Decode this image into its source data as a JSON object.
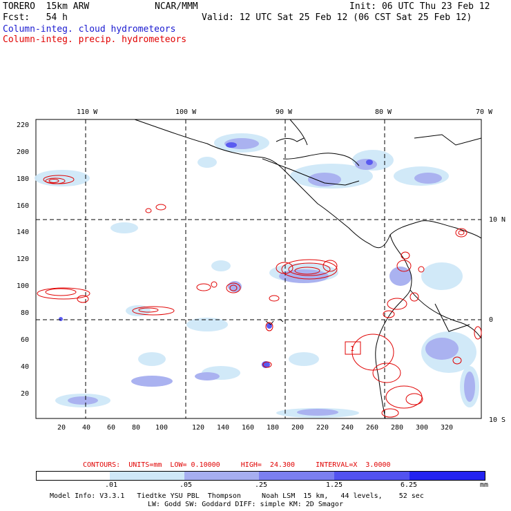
{
  "header": {
    "model": "TORERO  15km ARW",
    "org": "NCAR/MMM",
    "init": "Init: 06 UTC Thu 23 Feb 12",
    "fcst": "Fcst:   54 h",
    "valid": "Valid: 12 UTC Sat 25 Feb 12 (06 CST Sat 25 Feb 12)",
    "field1": "Column-integ. cloud hydrometeors",
    "field2": "Column-integ. precip. hydrometeors"
  },
  "axes": {
    "lon_labels": [
      "110 W",
      "100 W",
      "90 W",
      "80 W",
      "70 W"
    ],
    "lat_labels": [
      "10 N",
      "0",
      "10 S"
    ],
    "y_ticks": [
      "220",
      "200",
      "180",
      "160",
      "140",
      "120",
      "100",
      "80",
      "60",
      "40",
      "20"
    ],
    "x_ticks": [
      "20",
      "40",
      "60",
      "80",
      "100",
      "120",
      "140",
      "160",
      "180",
      "200",
      "220",
      "240",
      "260",
      "280",
      "300",
      "320"
    ]
  },
  "contour_info": {
    "label": "CONTOURS:  UNITS=mm  LOW= 0.10000     HIGH=  24.300     INTERVAL=X  3.0000"
  },
  "color_scale": {
    "thresholds": [
      ".01",
      ".05",
      ".25",
      "1.25",
      "6.25"
    ],
    "unit": "mm",
    "colors": [
      "#ffffff",
      "#cfe8f8",
      "#a6aef0",
      "#7b7ff0",
      "#5252f0",
      "#2323f0"
    ]
  },
  "footer": {
    "line1": "Model Info: V3.3.1   Tiedtke YSU PBL  Thompson     Noah LSM  15 km,   44 levels,    52 sec",
    "line2": "LW: Godd SW: Goddard DIFF: simple KM: 2D Smagor"
  },
  "map_marker": "1",
  "colors": {
    "coast": "#000000",
    "contour": "#e00000",
    "grid": "#000000"
  }
}
